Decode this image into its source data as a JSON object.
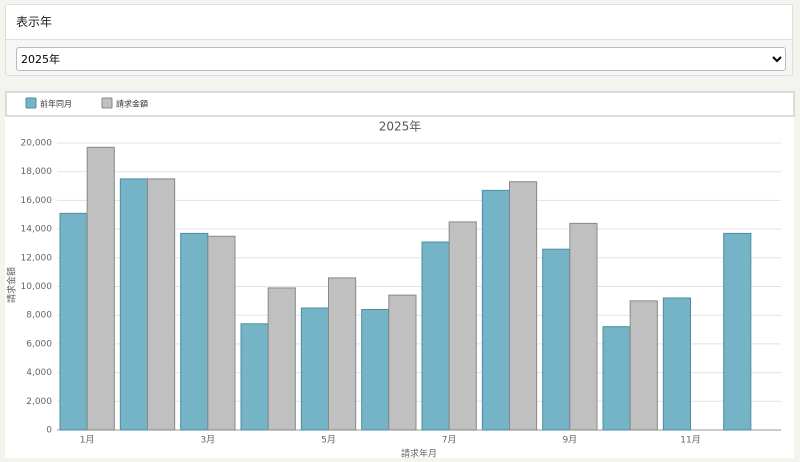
{
  "form": {
    "label": "表示年",
    "selected": "2025年"
  },
  "chart_data": {
    "type": "bar",
    "title": "2025年",
    "x_label": "請求年月",
    "y_label": "請求金額",
    "categories": [
      "1月",
      null,
      "3月",
      null,
      "5月",
      null,
      "7月",
      null,
      "9月",
      null,
      "11月",
      null
    ],
    "series": [
      {
        "name": "前年同月",
        "color": "#75b3c6",
        "values": [
          15100,
          17500,
          13700,
          7400,
          8500,
          8400,
          13100,
          16700,
          12600,
          7200,
          9200,
          13700
        ]
      },
      {
        "name": "請求金額",
        "color": "#c0c0c0",
        "values": [
          19700,
          17500,
          13500,
          9900,
          10600,
          9400,
          14500,
          17300,
          14400,
          9000,
          null,
          null
        ]
      }
    ],
    "ylim": [
      0,
      20000
    ],
    "yticks": [
      {
        "value": 0,
        "label": "0"
      },
      {
        "value": 2000,
        "label": "2,000"
      },
      {
        "value": 4000,
        "label": "4,000"
      },
      {
        "value": 6000,
        "label": "6,000"
      },
      {
        "value": 8000,
        "label": "8,000"
      },
      {
        "value": 10000,
        "label": "10,000"
      },
      {
        "value": 12000,
        "label": "12,000"
      },
      {
        "value": 14000,
        "label": "14,000"
      },
      {
        "value": 16000,
        "label": "16,000"
      },
      {
        "value": 18000,
        "label": "18,000"
      },
      {
        "value": 20000,
        "label": "20,000"
      }
    ],
    "grid": true
  }
}
